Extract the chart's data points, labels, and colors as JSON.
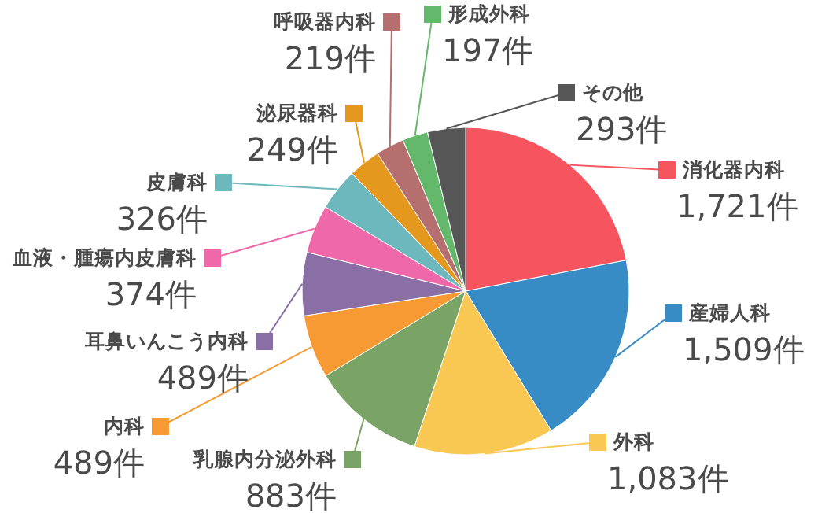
{
  "chart_data": {
    "type": "pie",
    "categories": [
      "消化器内科",
      "産婦人科",
      "外科",
      "乳腺内分泌外科",
      "内科",
      "耳鼻いんこう内科",
      "血液・腫瘍内皮膚科",
      "皮膚科",
      "泌尿器科",
      "呼吸器内科",
      "形成外科",
      "その他"
    ],
    "values": [
      1721,
      1509,
      1083,
      883,
      489,
      489,
      374,
      326,
      249,
      219,
      197,
      293
    ],
    "colors": [
      "#f6555f",
      "#388cc5",
      "#f9c852",
      "#7aa465",
      "#f89a34",
      "#8a6ea6",
      "#ef68aa",
      "#6db8bd",
      "#e4991e",
      "#b66f6f",
      "#63b86b",
      "#575757"
    ],
    "legend": "left",
    "value_labels": [
      "1,721件",
      "1,509件",
      "1,083件",
      "883件",
      "489件",
      "489件",
      "374件",
      "326件",
      "249件",
      "219件",
      "197件",
      "293件"
    ]
  }
}
